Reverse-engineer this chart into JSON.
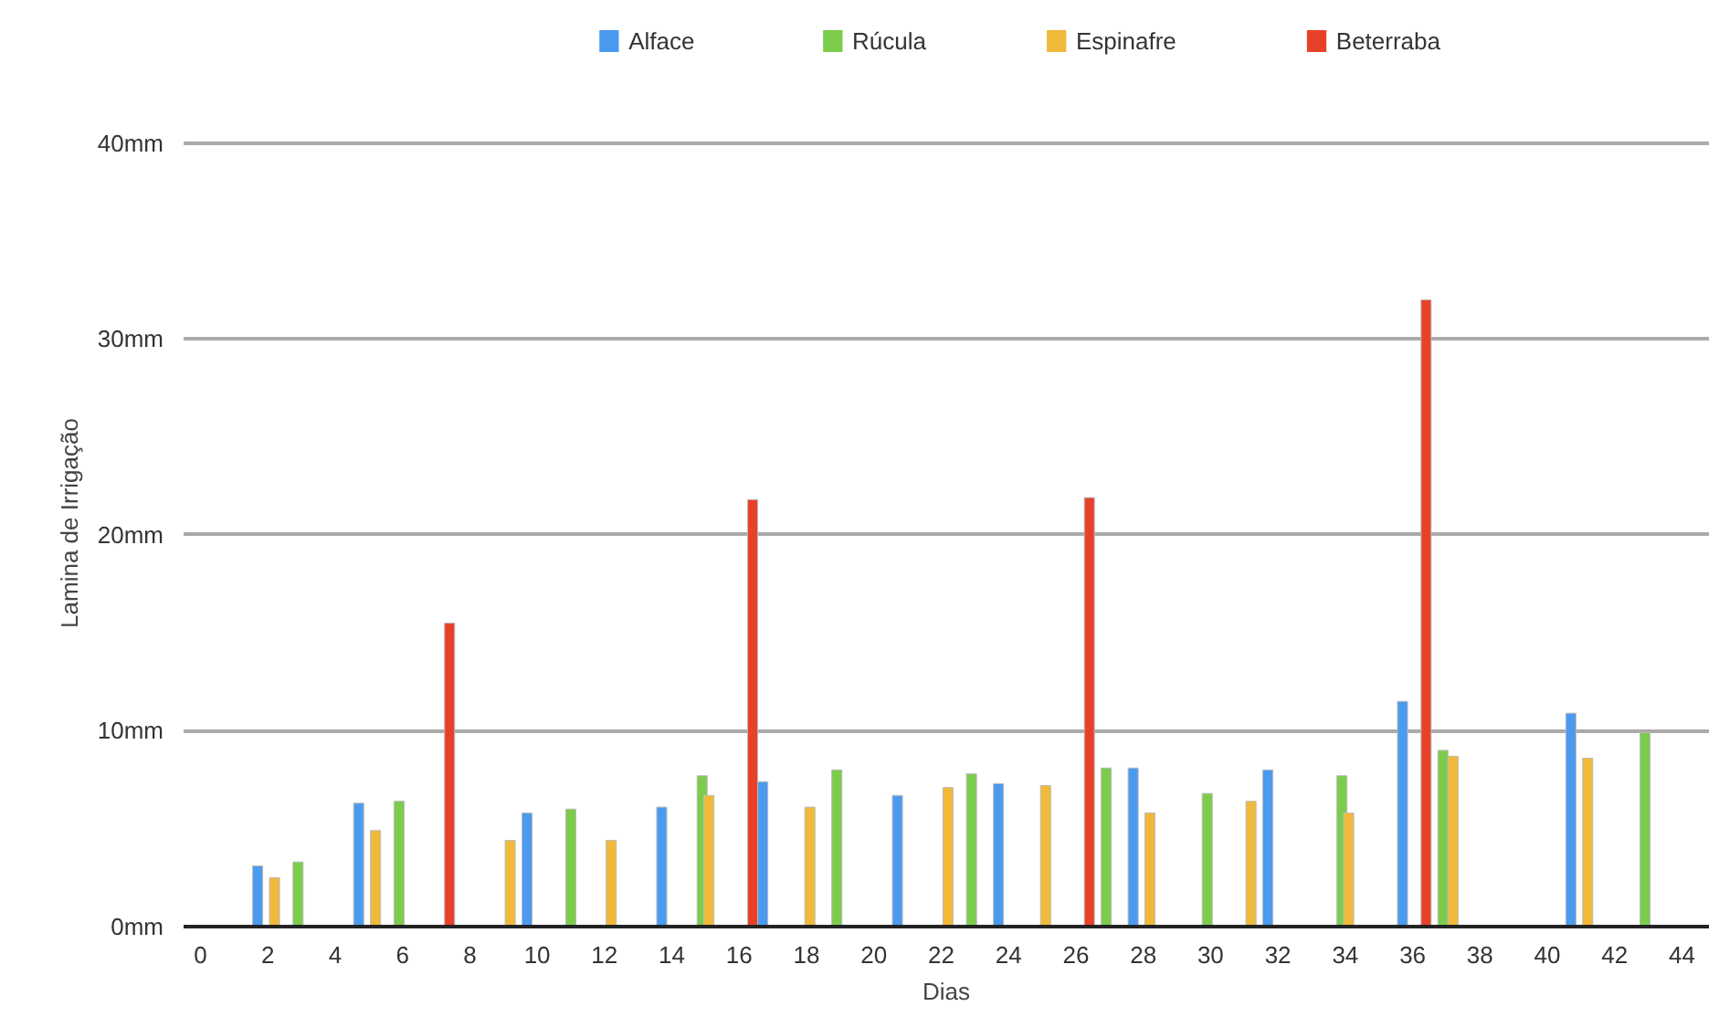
{
  "chart_data": {
    "type": "bar",
    "xlabel": "Dias",
    "ylabel": "Lamina de Irrigação",
    "series": [
      {
        "name": "Alface",
        "color": "#4a9af0",
        "x": [
          1.7,
          4.7,
          9.7,
          13.7,
          16.7,
          20.7,
          23.7,
          27.7,
          31.7,
          35.7,
          40.7
        ],
        "values": [
          3.1,
          6.3,
          5.8,
          6.1,
          7.4,
          6.7,
          7.3,
          8.1,
          8.0,
          11.5,
          10.9
        ]
      },
      {
        "name": "Rúcula",
        "color": "#7ccc4c",
        "x": [
          2.9,
          5.9,
          11.0,
          14.9,
          18.9,
          22.9,
          26.9,
          29.9,
          33.9,
          36.9,
          42.9
        ],
        "values": [
          3.3,
          6.4,
          6.0,
          7.7,
          8.0,
          7.8,
          8.1,
          6.8,
          7.7,
          9.0,
          9.9
        ]
      },
      {
        "name": "Espinafre",
        "color": "#f0b93a",
        "x": [
          2.2,
          5.2,
          9.2,
          12.2,
          15.1,
          18.1,
          22.2,
          25.1,
          28.2,
          31.2,
          34.1,
          37.2,
          41.2
        ],
        "values": [
          2.5,
          4.9,
          4.4,
          4.4,
          6.7,
          6.1,
          7.1,
          7.2,
          5.8,
          6.4,
          5.8,
          8.7,
          8.6
        ]
      },
      {
        "name": "Beterraba",
        "color": "#e8412a",
        "x": [
          7.4,
          16.4,
          26.4,
          36.4
        ],
        "values": [
          15.5,
          21.8,
          21.9,
          32.0
        ]
      }
    ],
    "xlim": [
      -0.5,
      44.8
    ],
    "xticks": [
      0,
      2,
      4,
      6,
      8,
      10,
      12,
      14,
      16,
      18,
      20,
      22,
      24,
      26,
      28,
      30,
      32,
      34,
      36,
      38,
      40,
      42,
      44
    ],
    "ylim": [
      0,
      40
    ],
    "yticks": [
      {
        "value": 0,
        "label": "0mm"
      },
      {
        "value": 10,
        "label": "10mm"
      },
      {
        "value": 20,
        "label": "20mm"
      },
      {
        "value": 30,
        "label": "30mm"
      },
      {
        "value": 40,
        "label": "40mm"
      }
    ],
    "grid": "y",
    "legend": "top"
  }
}
